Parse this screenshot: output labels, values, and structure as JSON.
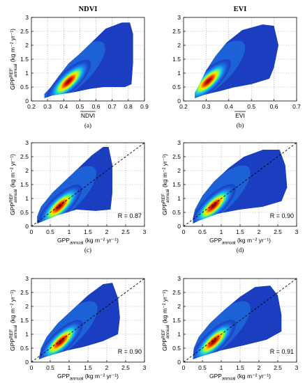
{
  "columns": [
    "NDVI",
    "EVI"
  ],
  "chart_data": [
    {
      "type": "heatmap",
      "panel_label": "(a)",
      "title": "NDVI",
      "xlabel": "NDVI",
      "x_overline": true,
      "ylabel_main": "GPP",
      "ylabel_super": "REF",
      "ylabel_sub": "annual",
      "ylabel_units": "(kg m⁻² yr⁻¹)",
      "xlim": [
        0.2,
        0.9
      ],
      "ylim": [
        0,
        3
      ],
      "xticks": [
        "0.2",
        "0.3",
        "0.4",
        "0.5",
        "0.6",
        "0.7",
        "0.8",
        "0.9"
      ],
      "yticks": [
        "0",
        "0.5",
        "1",
        "1.5",
        "2",
        "2.5",
        "3"
      ],
      "grid": true,
      "density_core": {
        "x": 0.43,
        "y": 0.7
      },
      "cloud_outline": [
        [
          0.28,
          0.1
        ],
        [
          0.33,
          0.2
        ],
        [
          0.47,
          0.32
        ],
        [
          0.56,
          0.43
        ],
        [
          0.65,
          0.5
        ],
        [
          0.78,
          0.5
        ],
        [
          0.82,
          0.6
        ],
        [
          0.83,
          1.4
        ],
        [
          0.83,
          2.4
        ],
        [
          0.81,
          2.82
        ],
        [
          0.76,
          2.82
        ],
        [
          0.66,
          2.6
        ],
        [
          0.58,
          2.15
        ],
        [
          0.5,
          1.7
        ],
        [
          0.43,
          1.35
        ],
        [
          0.37,
          0.9
        ],
        [
          0.32,
          0.5
        ],
        [
          0.28,
          0.25
        ]
      ],
      "one_to_one_line": false,
      "r_label": ""
    },
    {
      "type": "heatmap",
      "panel_label": "(b)",
      "title": "EVI",
      "xlabel": "EVI",
      "x_overline": true,
      "ylabel_main": "",
      "ylabel_super": "",
      "ylabel_sub": "",
      "ylabel_units": "",
      "xlim": [
        0.2,
        0.7
      ],
      "ylim": [
        0,
        3
      ],
      "xticks": [
        "0.2",
        "0.3",
        "0.4",
        "0.5",
        "0.6",
        "0.7"
      ],
      "yticks": [
        "0",
        "0.5",
        "1",
        "1.5",
        "2",
        "2.5",
        "3"
      ],
      "grid": true,
      "density_core": {
        "x": 0.31,
        "y": 0.72
      },
      "cloud_outline": [
        [
          0.25,
          0.1
        ],
        [
          0.29,
          0.22
        ],
        [
          0.36,
          0.35
        ],
        [
          0.42,
          0.48
        ],
        [
          0.5,
          0.6
        ],
        [
          0.58,
          0.8
        ],
        [
          0.6,
          1.2
        ],
        [
          0.62,
          2.0
        ],
        [
          0.6,
          2.7
        ],
        [
          0.55,
          2.75
        ],
        [
          0.46,
          2.55
        ],
        [
          0.39,
          2.1
        ],
        [
          0.34,
          1.6
        ],
        [
          0.3,
          1.1
        ],
        [
          0.27,
          0.6
        ],
        [
          0.25,
          0.3
        ]
      ],
      "one_to_one_line": false,
      "r_label": ""
    },
    {
      "type": "heatmap",
      "panel_label": "(c)",
      "title": "",
      "xlabel_main": "GPP",
      "xlabel_sub": "annual",
      "xlabel_units": "(kg m⁻² yr⁻¹)",
      "ylabel_main": "GPP",
      "ylabel_super": "REF",
      "ylabel_sub": "annual",
      "ylabel_units": "(kg m⁻² yr⁻¹)",
      "xlim": [
        0,
        3
      ],
      "ylim": [
        0,
        3
      ],
      "xticks": [
        "0",
        "0.5",
        "1",
        "1.5",
        "2",
        "2.5",
        "3"
      ],
      "yticks": [
        "0",
        "0.5",
        "1",
        "1.5",
        "2",
        "2.5",
        "3"
      ],
      "grid": true,
      "density_core": {
        "x": 0.75,
        "y": 0.72
      },
      "cloud_outline": [
        [
          0.15,
          0.1
        ],
        [
          0.3,
          0.18
        ],
        [
          0.7,
          0.4
        ],
        [
          1.2,
          0.6
        ],
        [
          1.7,
          0.55
        ],
        [
          2.1,
          0.6
        ],
        [
          2.15,
          1.2
        ],
        [
          2.15,
          2.2
        ],
        [
          2.05,
          2.85
        ],
        [
          1.9,
          2.85
        ],
        [
          1.6,
          2.55
        ],
        [
          1.25,
          2.1
        ],
        [
          0.9,
          1.65
        ],
        [
          0.55,
          1.2
        ],
        [
          0.25,
          0.7
        ],
        [
          0.15,
          0.35
        ]
      ],
      "one_to_one_line": true,
      "r_label": "R = 0.87"
    },
    {
      "type": "heatmap",
      "panel_label": "(d)",
      "title": "",
      "xlabel_main": "GPP",
      "xlabel_sub": "annual",
      "xlabel_units": "(kg m⁻² yr⁻¹)",
      "ylabel_main": "GPP",
      "ylabel_super": "REF",
      "ylabel_sub": "annual",
      "ylabel_units": "(kg m⁻² yr⁻¹)",
      "xlim": [
        0,
        3
      ],
      "ylim": [
        0,
        3
      ],
      "xticks": [
        "0",
        "0.5",
        "1",
        "1.5",
        "2",
        "2.5",
        "3"
      ],
      "yticks": [
        "0",
        "0.5",
        "1",
        "1.5",
        "2",
        "2.5",
        "3"
      ],
      "grid": true,
      "density_core": {
        "x": 0.8,
        "y": 0.74
      },
      "cloud_outline": [
        [
          0.25,
          0.1
        ],
        [
          0.4,
          0.2
        ],
        [
          0.9,
          0.45
        ],
        [
          1.5,
          0.6
        ],
        [
          2.1,
          0.7
        ],
        [
          2.6,
          0.9
        ],
        [
          2.75,
          1.4
        ],
        [
          2.7,
          2.2
        ],
        [
          2.55,
          2.75
        ],
        [
          2.1,
          2.75
        ],
        [
          1.6,
          2.5
        ],
        [
          1.2,
          2.1
        ],
        [
          0.8,
          1.6
        ],
        [
          0.5,
          1.1
        ],
        [
          0.3,
          0.6
        ],
        [
          0.25,
          0.3
        ]
      ],
      "one_to_one_line": true,
      "r_label": "R = 0.90"
    },
    {
      "type": "heatmap",
      "panel_label": "(e)",
      "title": "",
      "xlabel_main": "GPP",
      "xlabel_sub": "annual",
      "xlabel_units": "(kg m⁻² yr⁻¹)",
      "ylabel_main": "GPP",
      "ylabel_super": "REF",
      "ylabel_sub": "annual",
      "ylabel_units": "(kg m⁻² yr⁻¹)",
      "xlim": [
        0,
        3
      ],
      "ylim": [
        0,
        3
      ],
      "xticks": [
        "0",
        "0.5",
        "1",
        "1.5",
        "2",
        "2.5",
        "3"
      ],
      "yticks": [
        "0",
        "0.5",
        "1",
        "1.5",
        "2",
        "2.5",
        "3"
      ],
      "grid": true,
      "density_core": {
        "x": 0.78,
        "y": 0.74
      },
      "cloud_outline": [
        [
          0.2,
          0.1
        ],
        [
          0.4,
          0.2
        ],
        [
          0.9,
          0.4
        ],
        [
          1.4,
          0.55
        ],
        [
          1.9,
          0.75
        ],
        [
          2.3,
          1.0
        ],
        [
          2.35,
          1.6
        ],
        [
          2.3,
          2.3
        ],
        [
          2.15,
          2.85
        ],
        [
          1.9,
          2.8
        ],
        [
          1.5,
          2.4
        ],
        [
          1.1,
          1.9
        ],
        [
          0.7,
          1.4
        ],
        [
          0.4,
          0.9
        ],
        [
          0.25,
          0.5
        ]
      ],
      "one_to_one_line": true,
      "r_label": "R = 0.90"
    },
    {
      "type": "heatmap",
      "panel_label": "(f)",
      "title": "",
      "xlabel_main": "GPP",
      "xlabel_sub": "annual",
      "xlabel_units": "(kg m⁻² yr⁻¹)",
      "ylabel_main": "GPP",
      "ylabel_super": "REF",
      "ylabel_sub": "annual",
      "ylabel_units": "(kg m⁻² yr⁻¹)",
      "xlim": [
        0,
        3
      ],
      "ylim": [
        0,
        3
      ],
      "xticks": [
        "0",
        "0.5",
        "1",
        "1.5",
        "2",
        "2.5",
        "3"
      ],
      "yticks": [
        "0",
        "0.5",
        "1",
        "1.5",
        "2",
        "2.5",
        "3"
      ],
      "grid": true,
      "density_core": {
        "x": 0.8,
        "y": 0.74
      },
      "cloud_outline": [
        [
          0.25,
          0.1
        ],
        [
          0.45,
          0.2
        ],
        [
          1.0,
          0.42
        ],
        [
          1.6,
          0.6
        ],
        [
          2.2,
          0.8
        ],
        [
          2.6,
          1.1
        ],
        [
          2.6,
          1.7
        ],
        [
          2.5,
          2.4
        ],
        [
          2.3,
          2.75
        ],
        [
          1.9,
          2.7
        ],
        [
          1.5,
          2.35
        ],
        [
          1.1,
          1.9
        ],
        [
          0.7,
          1.4
        ],
        [
          0.4,
          0.9
        ],
        [
          0.27,
          0.5
        ]
      ],
      "one_to_one_line": true,
      "r_label": "R = 0.91"
    }
  ]
}
